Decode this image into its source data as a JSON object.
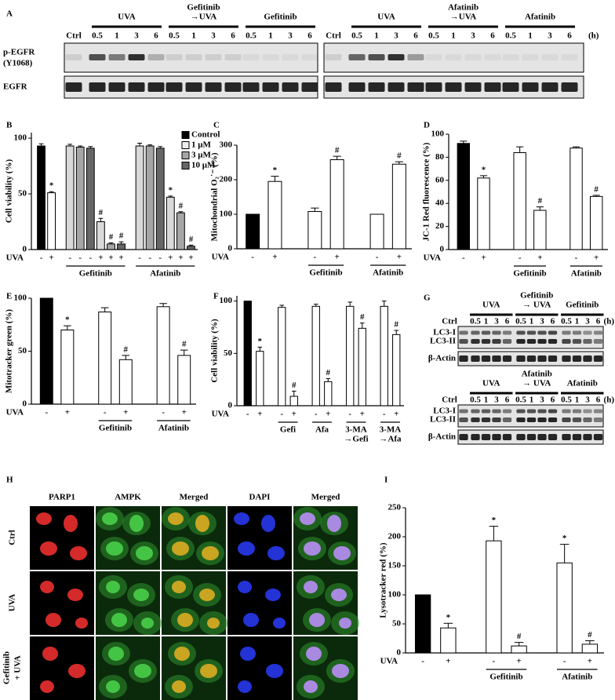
{
  "blot_a": {
    "label": "A",
    "unit": "(h)",
    "rows": [
      [
        "p-EGFR",
        "(Y1068)"
      ],
      [
        "EGFR"
      ]
    ],
    "panels": [
      {
        "ctrl": "Ctrl",
        "groups": [
          {
            "label": [
              "UVA"
            ],
            "lanes": [
              "0.5",
              "1",
              "3",
              "6"
            ]
          },
          {
            "label": [
              "Gefitinib",
              "→UVA"
            ],
            "lanes": [
              "0.5",
              "1",
              "3",
              "6"
            ]
          },
          {
            "label": [
              "Gefitinib"
            ],
            "lanes": [
              "0.5",
              "1",
              "3",
              "6"
            ]
          }
        ]
      },
      {
        "ctrl": "Ctrl",
        "groups": [
          {
            "label": [
              "UVA"
            ],
            "lanes": [
              "0.5",
              "1",
              "3",
              "6"
            ]
          },
          {
            "label": [
              "Afatinib",
              "→UVA"
            ],
            "lanes": [
              "0.5",
              "1",
              "3",
              "6"
            ]
          },
          {
            "label": [
              "Afatinib"
            ],
            "lanes": [
              "0.5",
              "1",
              "3",
              "6"
            ]
          }
        ]
      }
    ]
  },
  "chart_data": [
    {
      "label": "B",
      "type": "bar",
      "y_label": "Cell viability (%)",
      "row_label": "UVA",
      "categories": [
        "-",
        "+",
        "-",
        "-",
        "-",
        "+",
        "+",
        "+",
        "-",
        "-",
        "-",
        "+",
        "+",
        "+"
      ],
      "groups": [
        [
          "Gefitinib"
        ],
        [
          "Afatinib"
        ]
      ],
      "values": [
        93,
        51,
        93,
        92,
        91,
        25,
        5,
        5,
        93,
        93,
        91,
        47,
        33,
        3
      ],
      "errors": [
        2,
        1,
        1.5,
        1,
        1.5,
        3,
        1,
        2,
        2.5,
        1,
        1.5,
        1,
        1,
        1
      ],
      "colors": [
        "#000000",
        "#ffffff",
        "#d9d9d9",
        "#a6a6a6",
        "#666666",
        "#d9d9d9",
        "#a6a6a6",
        "#666666",
        "#d9d9d9",
        "#a6a6a6",
        "#666666",
        "#d9d9d9",
        "#a6a6a6",
        "#666666"
      ],
      "annotations": [
        null,
        "*",
        null,
        null,
        null,
        "#",
        "#",
        "#",
        null,
        null,
        null,
        "*",
        "#",
        "#"
      ],
      "legend": [
        {
          "name": "Control",
          "color": "#000000"
        },
        {
          "name": "1 μM",
          "color": "#eeeeee"
        },
        {
          "name": "3 μM",
          "color": "#a6a6a6"
        },
        {
          "name": "10 μM",
          "color": "#666666"
        }
      ],
      "ylim": [
        0,
        105
      ],
      "yticks": [
        0,
        50,
        100
      ]
    },
    {
      "label": "C",
      "type": "bar",
      "y_label": "Mitochondrial O₂˙⁻ (%)",
      "row_label": "UVA",
      "categories": [
        "-",
        "+",
        "-",
        "+",
        "-",
        "+"
      ],
      "groups": [
        [
          "Gefitinib"
        ],
        [
          "Afatinib"
        ]
      ],
      "values": [
        100,
        195,
        108,
        258,
        100,
        245
      ],
      "errors": [
        null,
        15,
        10,
        10,
        null,
        7
      ],
      "colors": [
        "#000000",
        "#ffffff",
        "#ffffff",
        "#ffffff",
        "#ffffff",
        "#ffffff"
      ],
      "annotations": [
        null,
        "*",
        null,
        "#",
        null,
        "#"
      ],
      "ylim": [
        0,
        300
      ],
      "yticks": [
        0,
        100,
        200,
        300
      ]
    },
    {
      "label": "D",
      "type": "bar",
      "y_label": "JC-1 Red fluorescence (%)",
      "row_label": "UVA",
      "categories": [
        "-",
        "+",
        "-",
        "+",
        "-",
        "+"
      ],
      "groups": [
        [
          "Gefitinib"
        ],
        [
          "Afatinib"
        ]
      ],
      "values": [
        92,
        62,
        84,
        34,
        88,
        46
      ],
      "errors": [
        2,
        2,
        5,
        3,
        1,
        1
      ],
      "colors": [
        "#000000",
        "#ffffff",
        "#ffffff",
        "#ffffff",
        "#ffffff",
        "#ffffff"
      ],
      "annotations": [
        null,
        "*",
        null,
        "#",
        null,
        "#"
      ],
      "ylim": [
        0,
        100
      ],
      "yticks": [
        0,
        20,
        40,
        60,
        80,
        100
      ]
    },
    {
      "label": "E",
      "type": "bar",
      "y_label": "Mitotracker green (%)",
      "row_label": "UVA",
      "categories": [
        "-",
        "+",
        "-",
        "+",
        "-",
        "+"
      ],
      "groups": [
        [
          "Gefitinib"
        ],
        [
          "Afatinib"
        ]
      ],
      "values": [
        100,
        70,
        87,
        42,
        92,
        46
      ],
      "errors": [
        null,
        4,
        4,
        4,
        3,
        5
      ],
      "colors": [
        "#000000",
        "#ffffff",
        "#ffffff",
        "#ffffff",
        "#ffffff",
        "#ffffff"
      ],
      "annotations": [
        null,
        "*",
        null,
        "#",
        null,
        "#"
      ],
      "ylim": [
        0,
        100
      ],
      "yticks": [
        0,
        50,
        100
      ]
    },
    {
      "label": "F",
      "type": "bar",
      "y_label": "Cell viability (%)",
      "row_label": "UVA",
      "categories": [
        "-",
        "+",
        "-",
        "+",
        "-",
        "+",
        "-",
        "+",
        "-",
        "+"
      ],
      "groups": [
        [
          "Gefi"
        ],
        [
          "Afa"
        ],
        [
          "3-MA",
          "→Gefi"
        ],
        [
          "3-MA",
          "→Afa"
        ]
      ],
      "values": [
        100,
        52,
        94,
        9,
        95,
        23,
        95,
        74,
        95,
        68
      ],
      "errors": [
        null,
        4,
        2,
        5,
        2,
        3,
        4,
        5,
        5,
        4
      ],
      "colors": [
        "#000000",
        "#ffffff",
        "#ffffff",
        "#ffffff",
        "#ffffff",
        "#ffffff",
        "#ffffff",
        "#ffffff",
        "#ffffff",
        "#ffffff"
      ],
      "annotations": [
        null,
        "*",
        null,
        "#",
        null,
        "#",
        null,
        "#",
        null,
        "#"
      ],
      "ylim": [
        0,
        105
      ],
      "yticks": [
        0,
        50,
        100
      ]
    },
    {
      "label": "I",
      "type": "bar",
      "y_label": "Lysotracker red (%)",
      "row_label": "UVA",
      "categories": [
        "-",
        "+",
        "-",
        "+",
        "-",
        "+"
      ],
      "groups": [
        [
          "Gefitinib"
        ],
        [
          "Afatinib"
        ]
      ],
      "values": [
        100,
        43,
        193,
        12,
        155,
        15
      ],
      "errors": [
        null,
        8,
        25,
        6,
        32,
        6
      ],
      "colors": [
        "#000000",
        "#ffffff",
        "#ffffff",
        "#ffffff",
        "#ffffff",
        "#ffffff"
      ],
      "annotations": [
        null,
        "*",
        "*",
        "#",
        "*",
        "#"
      ],
      "ylim": [
        0,
        250
      ],
      "yticks": [
        0,
        50,
        100,
        150,
        200,
        250
      ]
    }
  ],
  "blot_g": {
    "label": "G",
    "unit": "(h)",
    "panels": [
      {
        "ctrl": "Ctrl",
        "rows": [
          "LC3-I",
          "LC3-II",
          "β-Actin"
        ],
        "groups": [
          {
            "label": [
              "UVA"
            ],
            "lanes": [
              "0.5",
              "1",
              "3",
              "6"
            ]
          },
          {
            "label": [
              "Gefitinib",
              "→ UVA"
            ],
            "lanes": [
              "0.5",
              "1",
              "3",
              "6"
            ]
          },
          {
            "label": [
              "Gefitinib"
            ],
            "lanes": [
              "0.5",
              "1",
              "3",
              "6"
            ]
          }
        ]
      },
      {
        "ctrl": "Ctrl",
        "rows": [
          "LC3-I",
          "LC3-II",
          "β-Actin"
        ],
        "groups": [
          {
            "label": [
              "UVA"
            ],
            "lanes": [
              "0.5",
              "1",
              "3",
              "6"
            ]
          },
          {
            "label": [
              "Afatinib",
              "→ UVA"
            ],
            "lanes": [
              "0.5",
              "1",
              "3",
              "6"
            ]
          },
          {
            "label": [
              "Afatinib"
            ],
            "lanes": [
              "0.5",
              "1",
              "3",
              "6"
            ]
          }
        ]
      }
    ]
  },
  "images_h": {
    "label": "H",
    "columns": [
      "PARP1",
      "AMPK",
      "Merged",
      "DAPI",
      "Merged"
    ],
    "rows": [
      [
        "Ctrl"
      ],
      [
        "UVA"
      ],
      [
        "Gefitinib",
        "+ UVA"
      ]
    ]
  }
}
